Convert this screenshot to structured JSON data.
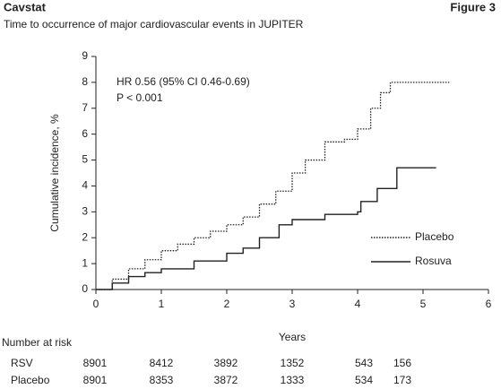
{
  "chart_data": {
    "type": "step",
    "brand": "Cavstat",
    "figure_label": "Figure 3",
    "title": "Time to occurrence of major cardiovascular events in JUPITER",
    "y_label": "Cumulative incidence, %",
    "x_label": "Years",
    "annotations": [
      "HR 0.56 (95% CI 0.46-0.69)",
      "P < 0.001"
    ],
    "xlim": [
      0,
      6
    ],
    "xticks": [
      0,
      1,
      2,
      3,
      4,
      5,
      6
    ],
    "ylim": [
      0,
      9
    ],
    "yticks": [
      0,
      1,
      2,
      3,
      4,
      5,
      6,
      7,
      8,
      9
    ],
    "series": [
      {
        "name": "Placebo",
        "color": "#222222",
        "dash": "dotted",
        "x": [
          0,
          0.25,
          0.5,
          0.75,
          1,
          1.25,
          1.5,
          1.75,
          2,
          2.25,
          2.5,
          2.75,
          3,
          3.2,
          3.5,
          3.8,
          4,
          4.2,
          4.35,
          4.5,
          5.4
        ],
        "values": [
          0,
          0.4,
          0.8,
          1.15,
          1.5,
          1.75,
          2,
          2.25,
          2.5,
          2.8,
          3.3,
          3.8,
          4.5,
          5,
          5.7,
          5.8,
          6.2,
          7,
          7.6,
          8,
          8
        ]
      },
      {
        "name": "Rosuva",
        "color": "#222222",
        "dash": "solid",
        "x": [
          0,
          0.25,
          0.5,
          0.75,
          1,
          1.5,
          2,
          2.25,
          2.5,
          2.8,
          3,
          3.5,
          4,
          4.05,
          4.3,
          4.6,
          5.2
        ],
        "values": [
          0,
          0.25,
          0.5,
          0.65,
          0.8,
          1.1,
          1.4,
          1.6,
          2,
          2.5,
          2.7,
          2.9,
          3,
          3.4,
          3.9,
          4.7,
          4.7
        ]
      }
    ],
    "number_at_risk": {
      "title": "Number at risk",
      "rows": [
        {
          "label": "RSV",
          "counts": [
            "8901",
            "8412",
            "3892",
            "1352",
            "543",
            "156"
          ]
        },
        {
          "label": "Placebo",
          "counts": [
            "8901",
            "8353",
            "3872",
            "1333",
            "534",
            "173"
          ]
        }
      ]
    }
  }
}
